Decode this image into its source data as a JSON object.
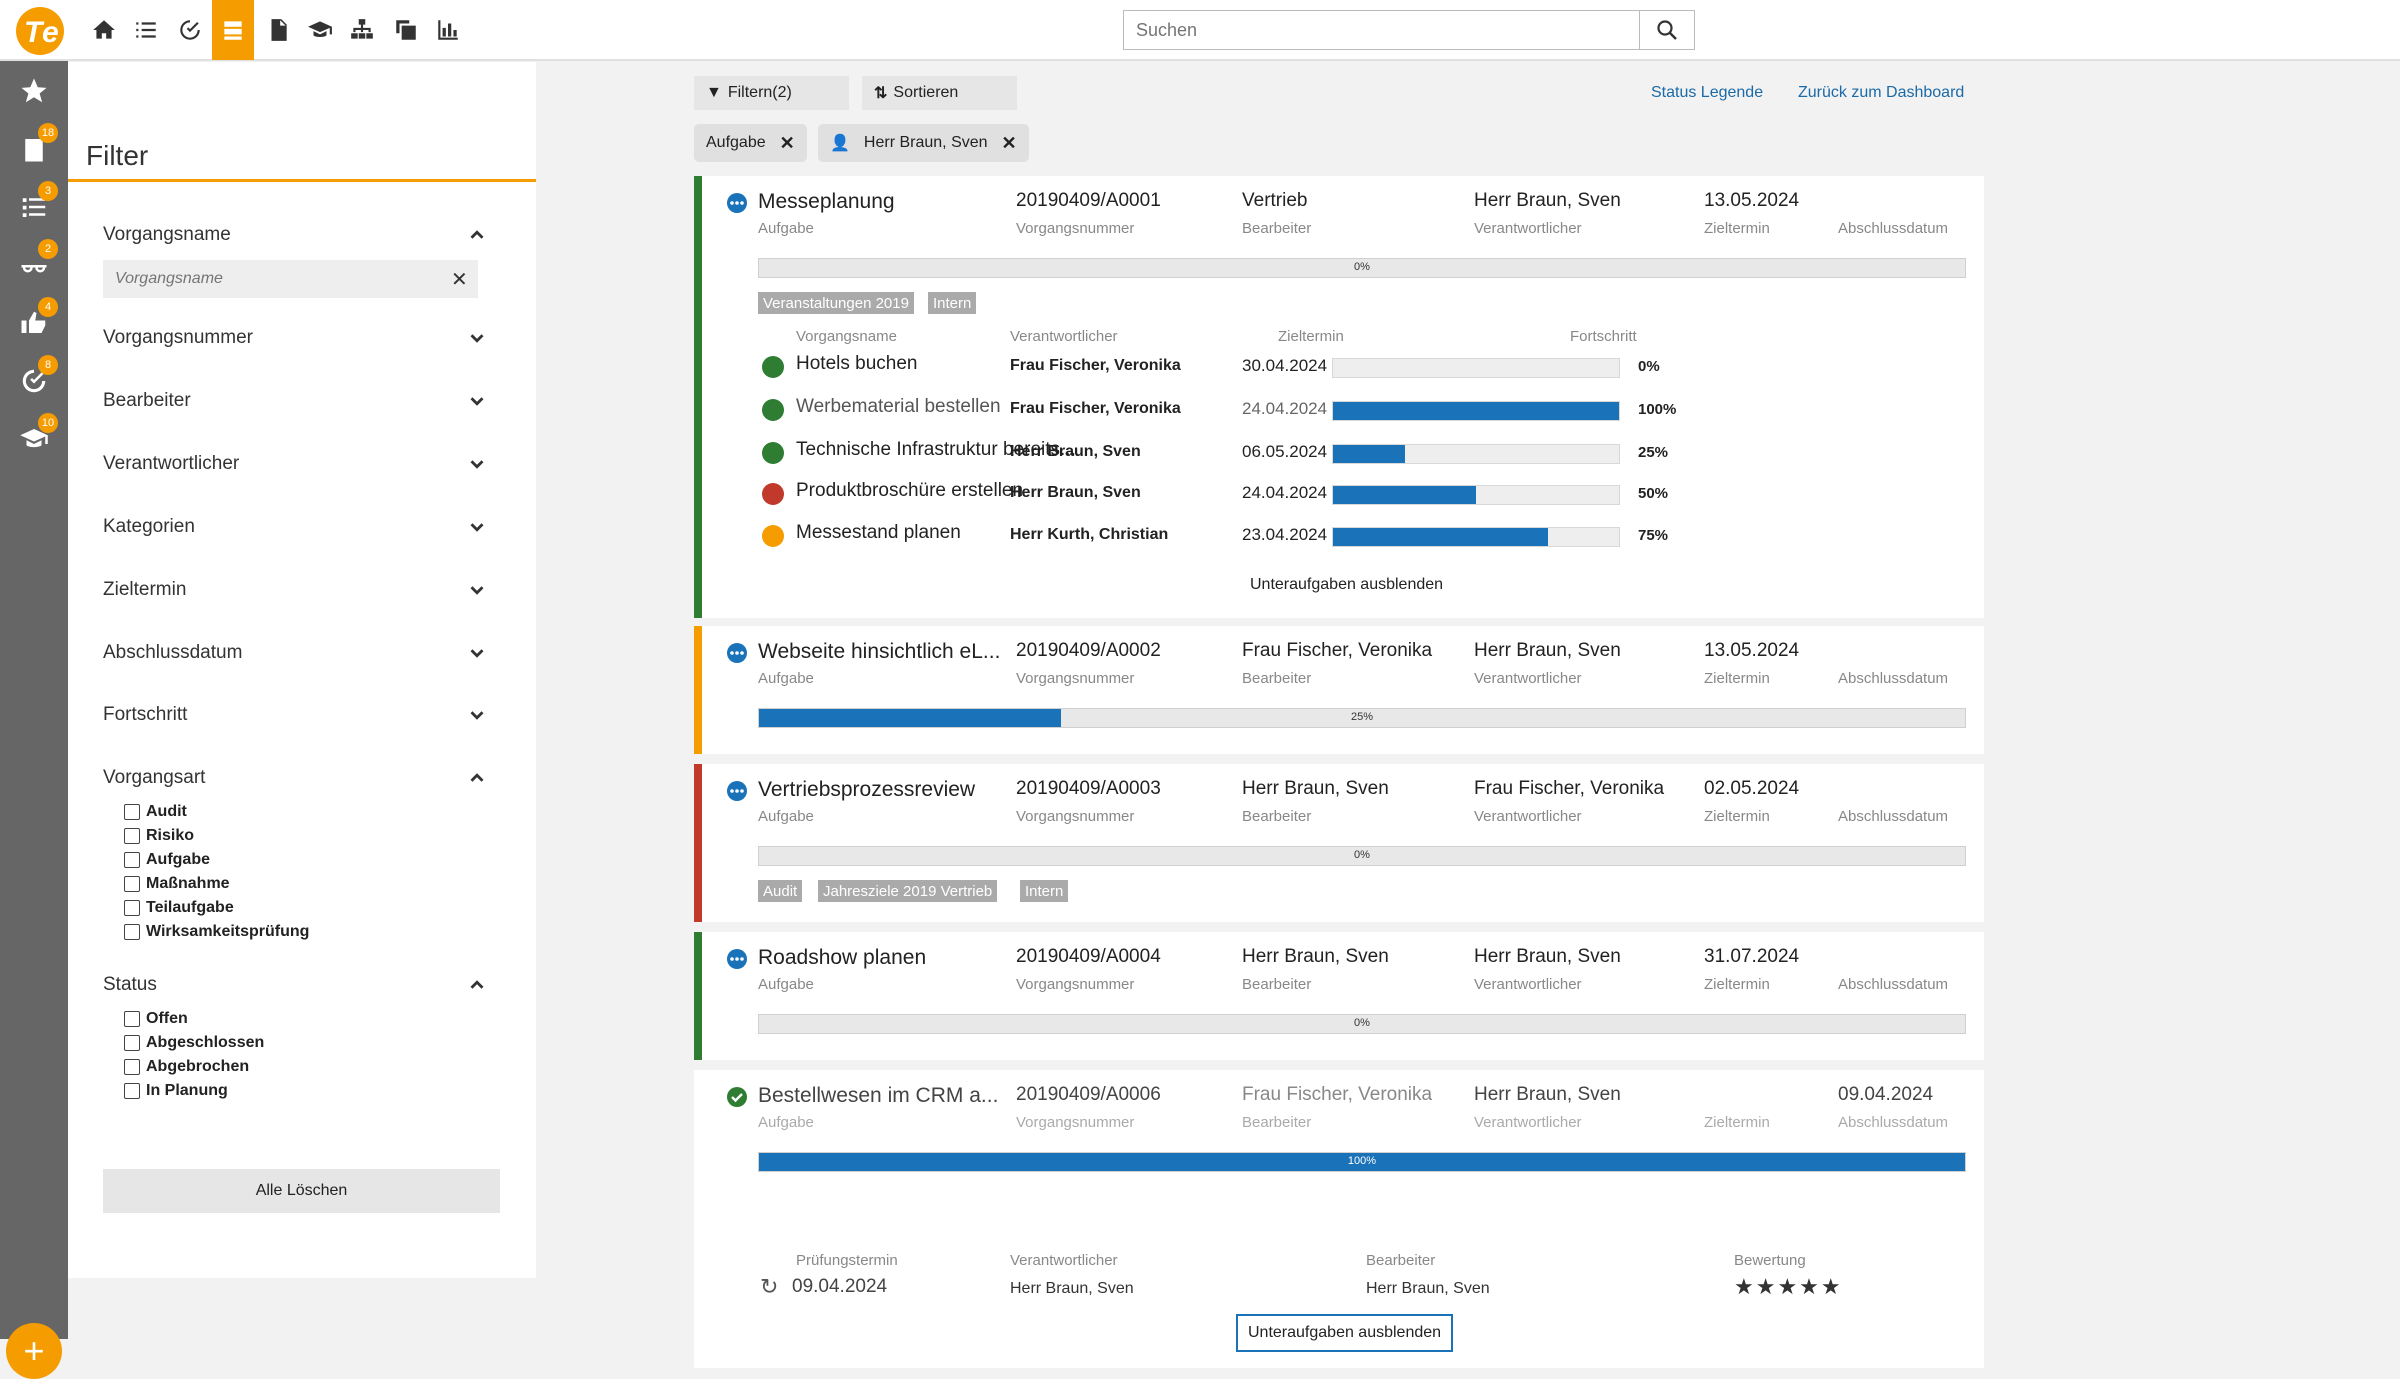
{
  "app": {
    "accent": "#f59c00",
    "link_color": "#1a6aa8",
    "progress_color": "#1a72b8"
  },
  "search": {
    "placeholder": "Suchen"
  },
  "rail": {
    "badges": [
      "18",
      "3",
      "2",
      "4",
      "8",
      "10"
    ]
  },
  "filter": {
    "title": "Filter",
    "vorgangsname_label": "Vorgangsname",
    "vorgangsname_placeholder": "Vorgangsname",
    "sections": [
      "Vorgangsnummer",
      "Bearbeiter",
      "Verantwortlicher",
      "Kategorien",
      "Zieltermin",
      "Abschlussdatum",
      "Fortschritt"
    ],
    "vorgangsart_label": "Vorgangsart",
    "vorgangsart_options": [
      "Audit",
      "Risiko",
      "Aufgabe",
      "Maßnahme",
      "Teilaufgabe",
      "Wirksamkeitsprüfung"
    ],
    "status_label": "Status",
    "status_options": [
      "Offen",
      "Abgeschlossen",
      "Abgebrochen",
      "In Planung"
    ],
    "clear_all": "Alle Löschen"
  },
  "toolbar": {
    "filter": "Filtern(2)",
    "sort": "Sortieren",
    "legend": "Status Legende",
    "back": "Zurück zum Dashboard"
  },
  "chips": [
    "Aufgabe",
    "Herr Braun, Sven"
  ],
  "labels": {
    "type": "Aufgabe",
    "number": "Vorgangsnummer",
    "editor": "Bearbeiter",
    "responsible": "Verantwortlicher",
    "target": "Zieltermin",
    "closing": "Abschlussdatum",
    "sub_name": "Vorgangsname",
    "sub_progress": "Fortschritt",
    "review_date": "Prüfungstermin",
    "rating": "Bewertung",
    "hide_sub": "Unteraufgaben ausblenden"
  },
  "cards": [
    {
      "title": "Messeplanung",
      "number": "20190409/A0001",
      "editor": "Vertrieb",
      "responsible": "Herr Braun, Sven",
      "target": "13.05.2024",
      "closing": "",
      "progress": "0%",
      "progress_value": 0,
      "status_color": "#2e7d32",
      "tags": [
        "Veranstaltungen 2019",
        "Intern"
      ],
      "subtasks": [
        {
          "name": "Hotels buchen",
          "responsible": "Frau Fischer, Veronika",
          "date": "30.04.2024",
          "progress": "0%",
          "value": 0,
          "dot": "#2e7d32"
        },
        {
          "name": "Werbematerial bestellen",
          "responsible": "Frau Fischer, Veronika",
          "date": "24.04.2024",
          "progress": "100%",
          "value": 100,
          "dot": "#2e7d32"
        },
        {
          "name": "Technische Infrastruktur bereits...",
          "responsible": "Herr Braun, Sven",
          "date": "06.05.2024",
          "progress": "25%",
          "value": 25,
          "dot": "#2e7d32"
        },
        {
          "name": "Produktbroschüre erstellen",
          "responsible": "Herr Braun, Sven",
          "date": "24.04.2024",
          "progress": "50%",
          "value": 50,
          "dot": "#c0392b"
        },
        {
          "name": "Messestand planen",
          "responsible": "Herr Kurth, Christian",
          "date": "23.04.2024",
          "progress": "75%",
          "value": 75,
          "dot": "#f59c00"
        }
      ]
    },
    {
      "title": "Webseite hinsichtlich eL...",
      "number": "20190409/A0002",
      "editor": "Frau Fischer, Veronika",
      "responsible": "Herr Braun, Sven",
      "target": "13.05.2024",
      "closing": "",
      "progress": "25%",
      "progress_value": 25,
      "status_color": "#f59c00",
      "tags": []
    },
    {
      "title": "Vertriebsprozessreview",
      "number": "20190409/A0003",
      "editor": "Herr Braun, Sven",
      "responsible": "Frau Fischer, Veronika",
      "target": "02.05.2024",
      "closing": "",
      "progress": "0%",
      "progress_value": 0,
      "status_color": "#c0392b",
      "tags": [
        "Audit",
        "Jahresziele 2019 Vertrieb",
        "Intern"
      ]
    },
    {
      "title": "Roadshow planen",
      "number": "20190409/A0004",
      "editor": "Herr Braun, Sven",
      "responsible": "Herr Braun, Sven",
      "target": "31.07.2024",
      "closing": "",
      "progress": "0%",
      "progress_value": 0,
      "status_color": "#2e7d32",
      "tags": []
    },
    {
      "title": "Bestellwesen im CRM a...",
      "number": "20190409/A0006",
      "editor": "Frau Fischer, Veronika",
      "responsible": "Herr Braun, Sven",
      "target": "",
      "closing": "09.04.2024",
      "progress": "100%",
      "progress_value": 100,
      "status_color": "#ffffff",
      "tags": [],
      "review": {
        "date": "09.04.2024",
        "responsible": "Herr Braun, Sven",
        "editor": "Herr Braun, Sven",
        "rating_stars": "★★★★★",
        "rating_value": 5
      }
    }
  ]
}
